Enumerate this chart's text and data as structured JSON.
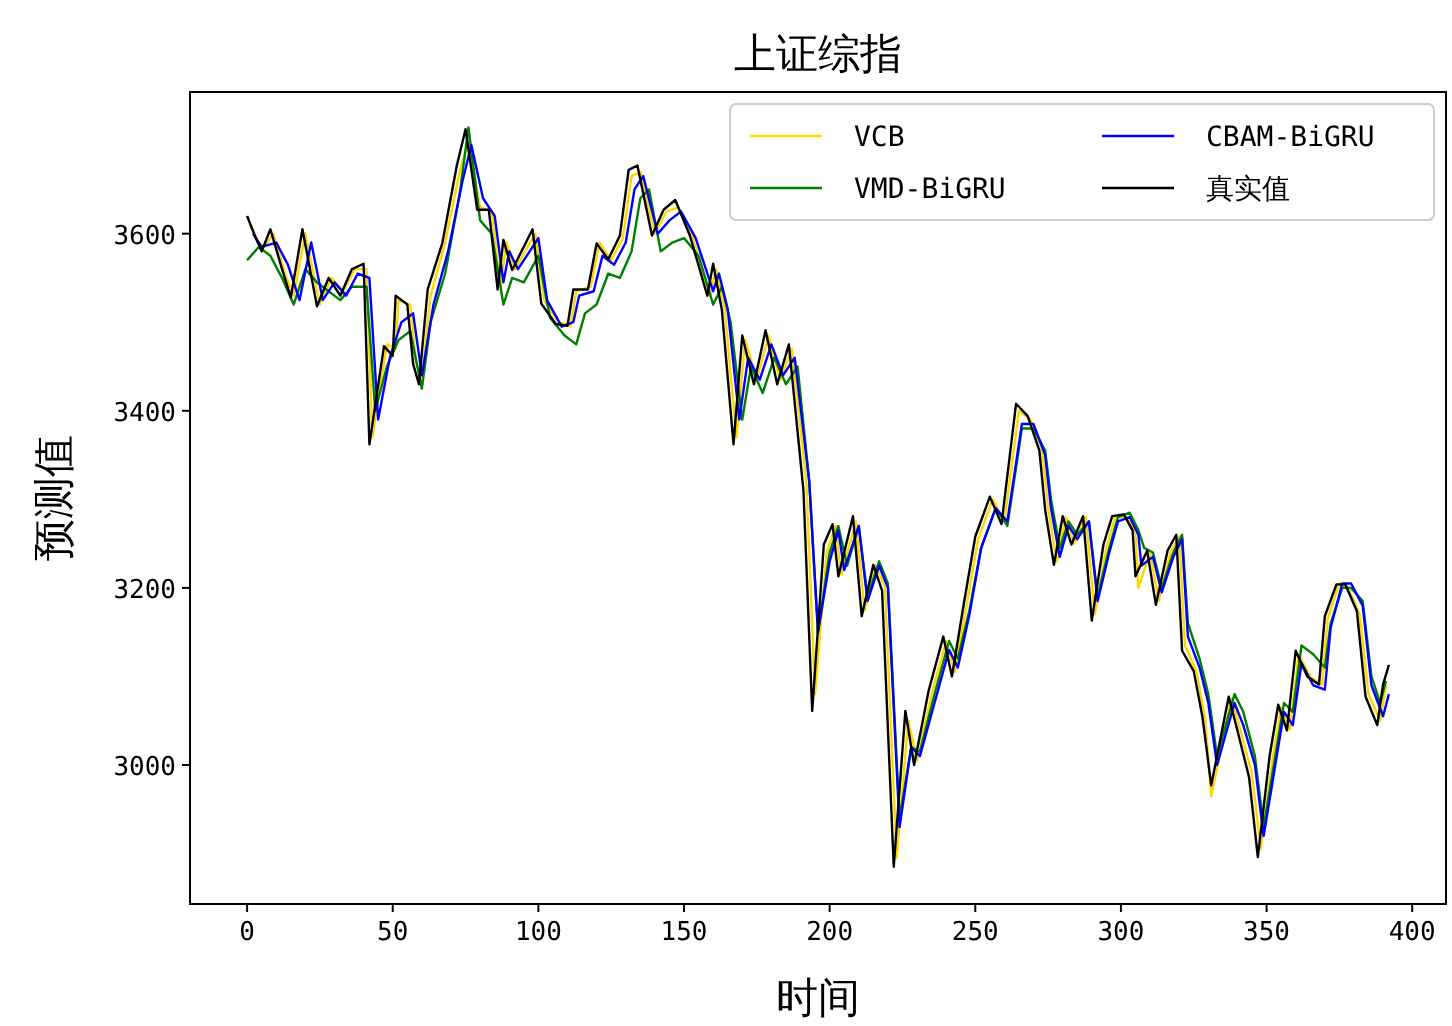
{
  "chart_data": {
    "type": "line",
    "title": "上证综指",
    "xlabel": "时间",
    "ylabel": "预测值",
    "xlim": [
      -19.6,
      411.6
    ],
    "ylim": [
      2843,
      3760
    ],
    "xticks": [
      0,
      50,
      100,
      150,
      200,
      250,
      300,
      350,
      400
    ],
    "yticks": [
      3000,
      3200,
      3400,
      3600
    ],
    "legend": "top right",
    "series": [
      {
        "name": "VCB",
        "color": "#ffd700",
        "x": [
          1,
          4,
          6,
          9,
          13,
          16,
          20,
          25,
          29,
          33,
          37,
          41,
          43,
          48,
          51,
          52,
          56,
          58,
          60,
          63,
          68,
          73,
          76,
          80,
          84,
          87,
          89,
          92,
          99,
          102,
          107,
          111,
          113,
          118,
          121,
          125,
          129,
          132,
          135,
          140,
          144,
          148,
          153,
          159,
          161,
          164,
          168,
          171,
          175,
          179,
          183,
          187,
          192,
          195,
          199,
          202,
          204,
          209,
          212,
          216,
          219,
          223,
          227,
          230,
          235,
          240,
          243,
          247,
          251,
          256,
          260,
          265,
          269,
          273,
          275,
          278,
          281,
          284,
          288,
          291,
          295,
          298,
          302,
          305,
          306,
          310,
          313,
          317,
          320,
          322,
          326,
          329,
          331,
          338,
          341,
          345,
          348,
          352,
          355,
          358,
          361,
          365,
          369,
          371,
          375,
          378,
          382,
          385,
          389,
          391
        ],
        "values": [
          3610,
          3590,
          3585,
          3600,
          3555,
          3530,
          3600,
          3520,
          3550,
          3535,
          3560,
          3560,
          3370,
          3475,
          3470,
          3525,
          3520,
          3455,
          3435,
          3530,
          3590,
          3670,
          3705,
          3630,
          3625,
          3540,
          3590,
          3560,
          3600,
          3525,
          3500,
          3495,
          3535,
          3540,
          3590,
          3570,
          3595,
          3665,
          3670,
          3600,
          3625,
          3630,
          3595,
          3530,
          3560,
          3515,
          3370,
          3480,
          3435,
          3485,
          3435,
          3470,
          3320,
          3080,
          3240,
          3270,
          3215,
          3275,
          3175,
          3225,
          3200,
          2895,
          3050,
          3005,
          3080,
          3140,
          3105,
          3180,
          3255,
          3300,
          3275,
          3400,
          3390,
          3355,
          3290,
          3230,
          3280,
          3250,
          3280,
          3170,
          3245,
          3280,
          3280,
          3262,
          3200,
          3240,
          3185,
          3240,
          3258,
          3135,
          3105,
          3050,
          2965,
          3075,
          3040,
          2990,
          2905,
          3005,
          3065,
          3040,
          3125,
          3100,
          3090,
          3165,
          3205,
          3200,
          3170,
          3080,
          3050,
          3090
        ]
      },
      {
        "name": "VMD-BiGRU",
        "color": "#008000",
        "x": [
          0,
          4,
          8,
          12,
          16,
          20,
          24,
          28,
          32,
          36,
          41,
          44,
          48,
          52,
          56,
          60,
          63,
          68,
          73,
          76,
          80,
          84,
          88,
          91,
          95,
          100,
          104,
          109,
          113,
          116,
          120,
          124,
          128,
          132,
          135,
          138,
          142,
          146,
          150,
          155,
          160,
          163,
          166,
          170,
          173,
          177,
          181,
          185,
          189,
          193,
          196,
          200,
          203,
          206,
          210,
          213,
          217,
          220,
          224,
          228,
          231,
          236,
          241,
          244,
          248,
          252,
          257,
          261,
          266,
          270,
          274,
          276,
          279,
          282,
          285,
          289,
          292,
          296,
          299,
          303,
          306,
          308,
          311,
          314,
          318,
          321,
          323,
          327,
          330,
          333,
          339,
          342,
          346,
          349,
          353,
          356,
          359,
          362,
          366,
          370,
          372,
          376,
          379,
          383,
          386,
          389,
          391
        ],
        "values": [
          3570,
          3585,
          3575,
          3550,
          3520,
          3560,
          3545,
          3535,
          3525,
          3540,
          3540,
          3400,
          3450,
          3480,
          3490,
          3425,
          3500,
          3555,
          3645,
          3720,
          3615,
          3600,
          3520,
          3550,
          3545,
          3575,
          3505,
          3485,
          3475,
          3510,
          3520,
          3555,
          3550,
          3580,
          3640,
          3650,
          3580,
          3590,
          3595,
          3575,
          3520,
          3540,
          3500,
          3390,
          3450,
          3420,
          3460,
          3430,
          3450,
          3320,
          3150,
          3240,
          3270,
          3225,
          3270,
          3190,
          3230,
          3205,
          2940,
          3020,
          3015,
          3080,
          3140,
          3120,
          3175,
          3245,
          3290,
          3270,
          3380,
          3380,
          3355,
          3300,
          3245,
          3275,
          3260,
          3275,
          3190,
          3245,
          3280,
          3285,
          3265,
          3245,
          3240,
          3200,
          3240,
          3260,
          3160,
          3120,
          3080,
          3010,
          3080,
          3060,
          3010,
          2930,
          3010,
          3070,
          3060,
          3135,
          3125,
          3110,
          3160,
          3200,
          3200,
          3185,
          3100,
          3070,
          3095
        ]
      },
      {
        "name": "CBAM-BiGRU",
        "color": "#0000ff",
        "x": [
          2,
          5,
          10,
          14,
          18,
          22,
          26,
          30,
          34,
          38,
          42,
          45,
          49,
          53,
          57,
          60,
          64,
          69,
          74,
          77,
          81,
          85,
          88,
          90,
          93,
          100,
          103,
          108,
          112,
          114,
          119,
          122,
          126,
          130,
          133,
          136,
          141,
          145,
          149,
          154,
          160,
          162,
          165,
          169,
          172,
          176,
          180,
          184,
          188,
          193,
          196,
          200,
          203,
          205,
          210,
          213,
          217,
          220,
          224,
          228,
          231,
          236,
          241,
          244,
          248,
          252,
          257,
          261,
          266,
          270,
          274,
          276,
          279,
          282,
          285,
          289,
          292,
          296,
          299,
          303,
          306,
          307,
          311,
          314,
          318,
          321,
          323,
          327,
          330,
          333,
          339,
          342,
          346,
          349,
          353,
          356,
          359,
          362,
          366,
          370,
          372,
          376,
          379,
          383,
          386,
          390,
          392
        ],
        "values": [
          3600,
          3585,
          3590,
          3565,
          3525,
          3590,
          3525,
          3545,
          3530,
          3555,
          3550,
          3390,
          3460,
          3500,
          3510,
          3440,
          3520,
          3580,
          3660,
          3700,
          3640,
          3620,
          3545,
          3580,
          3560,
          3595,
          3525,
          3495,
          3500,
          3530,
          3535,
          3575,
          3565,
          3590,
          3650,
          3665,
          3600,
          3615,
          3625,
          3595,
          3535,
          3555,
          3515,
          3390,
          3460,
          3435,
          3475,
          3440,
          3460,
          3320,
          3150,
          3230,
          3265,
          3220,
          3270,
          3185,
          3225,
          3200,
          2930,
          3020,
          3010,
          3070,
          3130,
          3110,
          3170,
          3245,
          3290,
          3275,
          3385,
          3385,
          3350,
          3290,
          3235,
          3270,
          3255,
          3275,
          3185,
          3240,
          3275,
          3280,
          3260,
          3225,
          3235,
          3195,
          3235,
          3255,
          3145,
          3110,
          3070,
          3000,
          3070,
          3045,
          3000,
          2920,
          3000,
          3060,
          3045,
          3115,
          3090,
          3085,
          3155,
          3205,
          3205,
          3180,
          3090,
          3055,
          3080
        ]
      },
      {
        "name": "真实值",
        "color": "#000000",
        "x": [
          0,
          3,
          5,
          8,
          12,
          15,
          19,
          24,
          28,
          32,
          36,
          40,
          42,
          47,
          50,
          51,
          55,
          57,
          59,
          62,
          67,
          72,
          75,
          79,
          83,
          86,
          88,
          91,
          98,
          101,
          106,
          110,
          112,
          117,
          120,
          124,
          128,
          131,
          134,
          139,
          143,
          147,
          152,
          158,
          160,
          163,
          167,
          170,
          174,
          178,
          182,
          186,
          191,
          194,
          198,
          201,
          203,
          208,
          211,
          215,
          218,
          222,
          226,
          229,
          234,
          239,
          242,
          246,
          250,
          255,
          259,
          264,
          268,
          272,
          274,
          277,
          280,
          283,
          287,
          290,
          294,
          297,
          301,
          304,
          305,
          309,
          312,
          316,
          319,
          321,
          325,
          328,
          331,
          337,
          340,
          344,
          347,
          351,
          354,
          357,
          360,
          364,
          368,
          370,
          374,
          377,
          381,
          384,
          388,
          390,
          392
        ],
        "values": [
          3620,
          3595,
          3580,
          3605,
          3560,
          3528,
          3605,
          3518,
          3550,
          3530,
          3560,
          3566,
          3362,
          3473,
          3462,
          3530,
          3520,
          3453,
          3430,
          3537,
          3589,
          3677,
          3718,
          3627,
          3627,
          3537,
          3593,
          3559,
          3605,
          3521,
          3498,
          3496,
          3537,
          3537,
          3589,
          3571,
          3598,
          3672,
          3677,
          3598,
          3627,
          3638,
          3598,
          3530,
          3566,
          3514,
          3362,
          3485,
          3430,
          3491,
          3430,
          3475,
          3310,
          3061,
          3249,
          3272,
          3213,
          3281,
          3168,
          3226,
          3197,
          2885,
          3061,
          3000,
          3084,
          3145,
          3100,
          3181,
          3258,
          3303,
          3272,
          3408,
          3394,
          3355,
          3288,
          3226,
          3281,
          3249,
          3281,
          3163,
          3249,
          3281,
          3283,
          3265,
          3213,
          3242,
          3181,
          3242,
          3260,
          3129,
          3106,
          3054,
          2977,
          3077,
          3039,
          2986,
          2896,
          3009,
          3068,
          3039,
          3129,
          3100,
          3091,
          3168,
          3204,
          3204,
          3174,
          3077,
          3045,
          3091,
          3113
        ]
      }
    ]
  }
}
